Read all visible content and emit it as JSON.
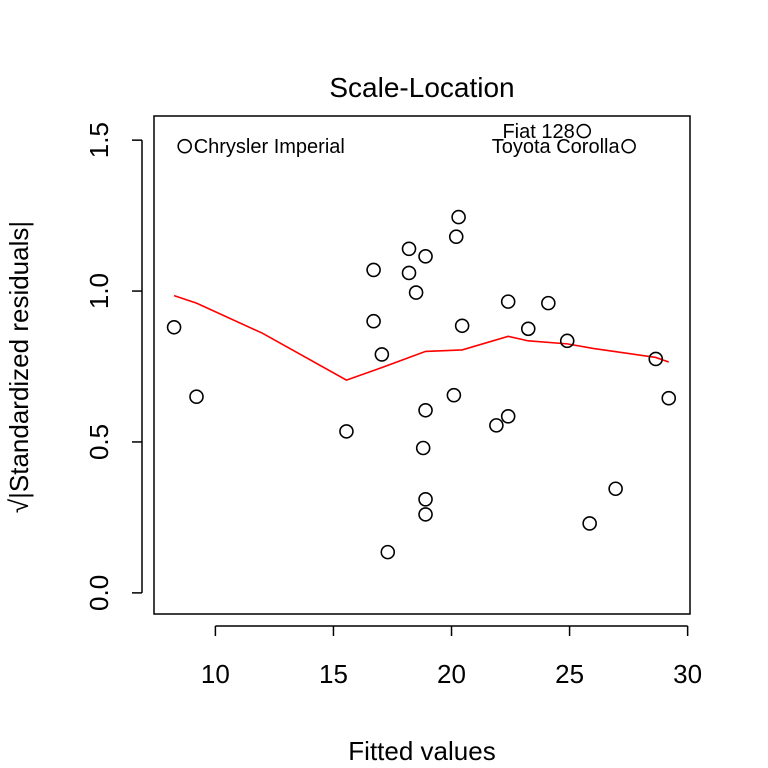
{
  "chart_data": {
    "type": "scatter",
    "title": "Scale-Location",
    "xlabel": "Fitted values",
    "ylabel": "√|Standardized residuals|",
    "xlim": [
      7.4,
      30.1
    ],
    "ylim": [
      -0.07,
      1.58
    ],
    "xticks": [
      10,
      15,
      20,
      25,
      30
    ],
    "xtick_labels": [
      "10",
      "15",
      "20",
      "25",
      "30"
    ],
    "yticks": [
      0.0,
      0.5,
      1.0,
      1.5
    ],
    "ytick_labels": [
      "0.0",
      "0.5",
      "1.0",
      "1.5"
    ],
    "grid": false,
    "points": [
      {
        "x": 8.7,
        "y": 1.48,
        "label": "Chrysler Imperial"
      },
      {
        "x": 25.6,
        "y": 1.53,
        "label": "Fiat 128"
      },
      {
        "x": 27.5,
        "y": 1.48,
        "label": "Toyota Corolla"
      },
      {
        "x": 8.25,
        "y": 0.88
      },
      {
        "x": 9.2,
        "y": 0.65
      },
      {
        "x": 15.55,
        "y": 0.535
      },
      {
        "x": 16.7,
        "y": 1.07
      },
      {
        "x": 16.7,
        "y": 0.9
      },
      {
        "x": 17.05,
        "y": 0.79
      },
      {
        "x": 17.3,
        "y": 0.135
      },
      {
        "x": 18.2,
        "y": 1.14
      },
      {
        "x": 18.2,
        "y": 1.06
      },
      {
        "x": 18.5,
        "y": 0.995
      },
      {
        "x": 18.8,
        "y": 0.48
      },
      {
        "x": 18.9,
        "y": 1.115
      },
      {
        "x": 18.9,
        "y": 0.605
      },
      {
        "x": 18.9,
        "y": 0.31
      },
      {
        "x": 18.9,
        "y": 0.26
      },
      {
        "x": 20.1,
        "y": 0.655
      },
      {
        "x": 20.2,
        "y": 1.18
      },
      {
        "x": 20.3,
        "y": 1.245
      },
      {
        "x": 20.45,
        "y": 0.885
      },
      {
        "x": 21.9,
        "y": 0.555
      },
      {
        "x": 22.4,
        "y": 0.965
      },
      {
        "x": 22.4,
        "y": 0.585
      },
      {
        "x": 23.25,
        "y": 0.875
      },
      {
        "x": 24.1,
        "y": 0.96
      },
      {
        "x": 24.9,
        "y": 0.835
      },
      {
        "x": 25.85,
        "y": 0.23
      },
      {
        "x": 26.95,
        "y": 0.345
      },
      {
        "x": 28.65,
        "y": 0.775
      },
      {
        "x": 29.2,
        "y": 0.645
      }
    ],
    "smooth_line": {
      "color": "#ff0000",
      "x": [
        8.25,
        9.2,
        12.0,
        15.55,
        17.0,
        18.9,
        20.45,
        22.4,
        23.25,
        24.9,
        26.0,
        28.65,
        29.2
      ],
      "y": [
        0.985,
        0.96,
        0.86,
        0.705,
        0.745,
        0.8,
        0.805,
        0.85,
        0.835,
        0.825,
        0.81,
        0.78,
        0.765
      ]
    }
  }
}
